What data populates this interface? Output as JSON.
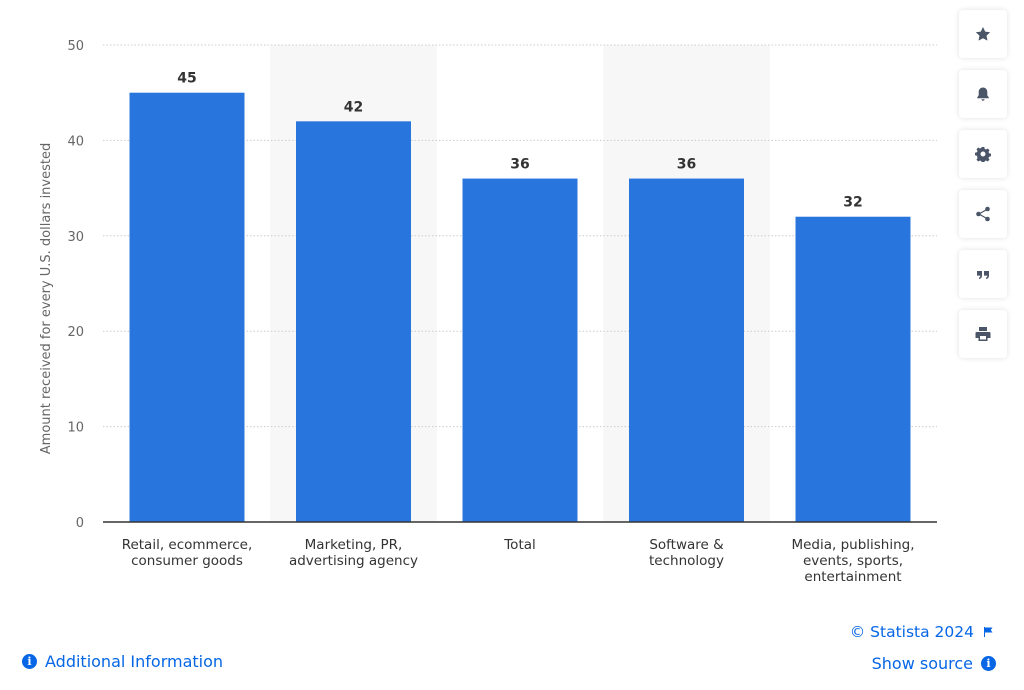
{
  "chart_data": {
    "type": "bar",
    "categories": [
      [
        "Retail, ecommerce,",
        "consumer goods"
      ],
      [
        "Marketing, PR,",
        "advertising agency"
      ],
      [
        "Total"
      ],
      [
        "Software &",
        "technology"
      ],
      [
        "Media, publishing,",
        "events, sports,",
        "entertainment"
      ]
    ],
    "values": [
      45,
      42,
      36,
      36,
      32
    ],
    "ylabel": "Amount received for every U.S. dollars invested",
    "ylim": [
      0,
      50
    ],
    "yticks": [
      0,
      10,
      20,
      30,
      40,
      50
    ],
    "grid": true,
    "bar_color": "#2876dd"
  },
  "toolbar": {
    "buttons": [
      {
        "name": "favorite-button",
        "icon": "star-icon"
      },
      {
        "name": "notification-button",
        "icon": "bell-icon"
      },
      {
        "name": "settings-button",
        "icon": "gear-icon"
      },
      {
        "name": "share-button",
        "icon": "share-icon"
      },
      {
        "name": "cite-button",
        "icon": "quote-icon"
      },
      {
        "name": "print-button",
        "icon": "printer-icon"
      }
    ]
  },
  "footer": {
    "additional_info": "Additional Information",
    "copyright": "© Statista 2024",
    "show_source": "Show source"
  },
  "colors": {
    "accent": "#0666e5",
    "bar": "#2876dd",
    "band": "#f7f7f7"
  }
}
